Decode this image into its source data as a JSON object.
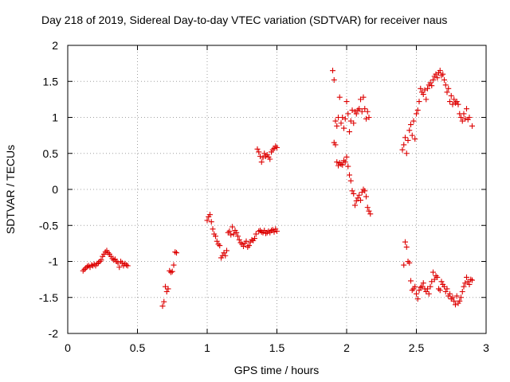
{
  "chart_data": {
    "type": "scatter",
    "title": "Day 218 of 2019, Sidereal Day-to-day VTEC variation (SDTVAR) for receiver naus",
    "xlabel": "GPS time / hours",
    "ylabel": "SDTVAR / TECUs",
    "xlim": [
      0,
      3
    ],
    "ylim": [
      -2,
      2
    ],
    "x_ticks": [
      0,
      0.5,
      1,
      1.5,
      2,
      2.5,
      3
    ],
    "x_tick_labels": [
      "0",
      "0.5",
      "1",
      "1.5",
      "2",
      "2.5",
      "3"
    ],
    "y_ticks": [
      -2,
      -1.5,
      -1,
      -0.5,
      0,
      0.5,
      1,
      1.5,
      2
    ],
    "y_tick_labels": [
      "-2",
      "-1.5",
      "-1",
      "-0.5",
      "0",
      "0.5",
      "1",
      "1.5",
      "2"
    ],
    "grid": true,
    "marker": "+",
    "marker_color": "#dd0000",
    "series": [
      {
        "name": "SDTVAR",
        "points": [
          [
            0.11,
            -1.13
          ],
          [
            0.12,
            -1.11
          ],
          [
            0.13,
            -1.09
          ],
          [
            0.14,
            -1.07
          ],
          [
            0.15,
            -1.06
          ],
          [
            0.16,
            -1.08
          ],
          [
            0.17,
            -1.05
          ],
          [
            0.18,
            -1.06
          ],
          [
            0.19,
            -1.04
          ],
          [
            0.2,
            -1.06
          ],
          [
            0.21,
            -1.03
          ],
          [
            0.22,
            -1.02
          ],
          [
            0.23,
            -1.0
          ],
          [
            0.24,
            -0.98
          ],
          [
            0.25,
            -0.93
          ],
          [
            0.26,
            -0.9
          ],
          [
            0.27,
            -0.87
          ],
          [
            0.28,
            -0.85
          ],
          [
            0.29,
            -0.88
          ],
          [
            0.3,
            -0.9
          ],
          [
            0.31,
            -0.93
          ],
          [
            0.32,
            -0.96
          ],
          [
            0.33,
            -0.98
          ],
          [
            0.34,
            -0.97
          ],
          [
            0.35,
            -1.0
          ],
          [
            0.36,
            -1.02
          ],
          [
            0.37,
            -1.08
          ],
          [
            0.38,
            -1.0
          ],
          [
            0.39,
            -1.02
          ],
          [
            0.4,
            -1.06
          ],
          [
            0.41,
            -1.03
          ],
          [
            0.42,
            -1.05
          ],
          [
            0.43,
            -1.06
          ],
          [
            0.68,
            -1.62
          ],
          [
            0.69,
            -1.56
          ],
          [
            0.7,
            -1.35
          ],
          [
            0.71,
            -1.42
          ],
          [
            0.72,
            -1.38
          ],
          [
            0.73,
            -1.13
          ],
          [
            0.74,
            -1.15
          ],
          [
            0.75,
            -1.14
          ],
          [
            0.76,
            -1.05
          ],
          [
            0.77,
            -0.87
          ],
          [
            0.78,
            -0.88
          ],
          [
            1.0,
            -0.43
          ],
          [
            1.01,
            -0.38
          ],
          [
            1.02,
            -0.35
          ],
          [
            1.03,
            -0.45
          ],
          [
            1.04,
            -0.55
          ],
          [
            1.05,
            -0.62
          ],
          [
            1.06,
            -0.65
          ],
          [
            1.07,
            -0.72
          ],
          [
            1.08,
            -0.76
          ],
          [
            1.09,
            -0.78
          ],
          [
            1.1,
            -0.95
          ],
          [
            1.11,
            -0.92
          ],
          [
            1.12,
            -0.88
          ],
          [
            1.13,
            -0.92
          ],
          [
            1.14,
            -0.85
          ],
          [
            1.15,
            -0.6
          ],
          [
            1.16,
            -0.58
          ],
          [
            1.17,
            -0.63
          ],
          [
            1.18,
            -0.52
          ],
          [
            1.19,
            -0.62
          ],
          [
            1.2,
            -0.57
          ],
          [
            1.21,
            -0.6
          ],
          [
            1.22,
            -0.65
          ],
          [
            1.23,
            -0.7
          ],
          [
            1.24,
            -0.74
          ],
          [
            1.25,
            -0.76
          ],
          [
            1.26,
            -0.79
          ],
          [
            1.27,
            -0.75
          ],
          [
            1.28,
            -0.72
          ],
          [
            1.29,
            -0.8
          ],
          [
            1.3,
            -0.78
          ],
          [
            1.31,
            -0.73
          ],
          [
            1.32,
            -0.7
          ],
          [
            1.33,
            -0.71
          ],
          [
            1.34,
            -0.68
          ],
          [
            1.35,
            -0.62
          ],
          [
            1.36,
            0.56
          ],
          [
            1.37,
            0.52
          ],
          [
            1.38,
            0.46
          ],
          [
            1.39,
            0.38
          ],
          [
            1.4,
            0.44
          ],
          [
            1.41,
            0.5
          ],
          [
            1.42,
            0.46
          ],
          [
            1.43,
            0.48
          ],
          [
            1.44,
            0.45
          ],
          [
            1.45,
            0.42
          ],
          [
            1.46,
            0.52
          ],
          [
            1.47,
            0.55
          ],
          [
            1.48,
            0.57
          ],
          [
            1.49,
            0.6
          ],
          [
            1.5,
            0.58
          ],
          [
            1.37,
            -0.58
          ],
          [
            1.38,
            -0.57
          ],
          [
            1.39,
            -0.59
          ],
          [
            1.4,
            -0.6
          ],
          [
            1.41,
            -0.57
          ],
          [
            1.42,
            -0.61
          ],
          [
            1.43,
            -0.6
          ],
          [
            1.44,
            -0.58
          ],
          [
            1.45,
            -0.6
          ],
          [
            1.46,
            -0.57
          ],
          [
            1.47,
            -0.56
          ],
          [
            1.48,
            -0.59
          ],
          [
            1.49,
            -0.55
          ],
          [
            1.5,
            -0.58
          ],
          [
            1.9,
            1.65
          ],
          [
            1.91,
            1.52
          ],
          [
            1.92,
            0.95
          ],
          [
            1.93,
            0.88
          ],
          [
            1.94,
            1.0
          ],
          [
            1.95,
            1.28
          ],
          [
            1.96,
            0.92
          ],
          [
            1.97,
            1.0
          ],
          [
            1.98,
            0.85
          ],
          [
            1.99,
            0.98
          ],
          [
            2.0,
            1.22
          ],
          [
            2.01,
            1.05
          ],
          [
            2.02,
            0.8
          ],
          [
            2.03,
            0.95
          ],
          [
            2.04,
            1.1
          ],
          [
            2.05,
            0.92
          ],
          [
            2.06,
            1.08
          ],
          [
            2.07,
            1.05
          ],
          [
            2.08,
            1.1
          ],
          [
            2.09,
            1.12
          ],
          [
            2.1,
            1.25
          ],
          [
            2.11,
            1.08
          ],
          [
            2.12,
            1.28
          ],
          [
            2.13,
            1.12
          ],
          [
            2.14,
            0.98
          ],
          [
            2.15,
            1.08
          ],
          [
            2.16,
            1.0
          ],
          [
            1.91,
            0.65
          ],
          [
            1.92,
            0.62
          ],
          [
            1.93,
            0.38
          ],
          [
            1.94,
            0.33
          ],
          [
            1.95,
            0.37
          ],
          [
            1.96,
            0.35
          ],
          [
            1.97,
            0.34
          ],
          [
            1.98,
            0.4
          ],
          [
            1.99,
            0.38
          ],
          [
            2.0,
            0.45
          ],
          [
            2.01,
            0.32
          ],
          [
            2.02,
            0.2
          ],
          [
            2.03,
            0.12
          ],
          [
            2.04,
            -0.02
          ],
          [
            2.05,
            -0.06
          ],
          [
            2.06,
            -0.22
          ],
          [
            2.07,
            -0.16
          ],
          [
            2.08,
            -0.12
          ],
          [
            2.09,
            -0.08
          ],
          [
            2.1,
            -0.15
          ],
          [
            2.11,
            -0.04
          ],
          [
            2.12,
            0.0
          ],
          [
            2.13,
            -0.02
          ],
          [
            2.14,
            -0.1
          ],
          [
            2.15,
            -0.25
          ],
          [
            2.16,
            -0.3
          ],
          [
            2.17,
            -0.34
          ],
          [
            2.4,
            0.55
          ],
          [
            2.41,
            0.62
          ],
          [
            2.42,
            0.72
          ],
          [
            2.43,
            0.5
          ],
          [
            2.44,
            0.68
          ],
          [
            2.45,
            0.82
          ],
          [
            2.46,
            0.9
          ],
          [
            2.47,
            0.75
          ],
          [
            2.48,
            0.95
          ],
          [
            2.49,
            0.7
          ],
          [
            2.5,
            1.05
          ],
          [
            2.51,
            1.1
          ],
          [
            2.52,
            1.22
          ],
          [
            2.53,
            1.4
          ],
          [
            2.54,
            1.35
          ],
          [
            2.55,
            1.32
          ],
          [
            2.56,
            1.38
          ],
          [
            2.57,
            1.25
          ],
          [
            2.58,
            1.4
          ],
          [
            2.59,
            1.45
          ],
          [
            2.6,
            1.48
          ],
          [
            2.61,
            1.44
          ],
          [
            2.62,
            1.52
          ],
          [
            2.63,
            1.57
          ],
          [
            2.64,
            1.6
          ],
          [
            2.65,
            1.55
          ],
          [
            2.66,
            1.62
          ],
          [
            2.67,
            1.65
          ],
          [
            2.68,
            1.58
          ],
          [
            2.69,
            1.6
          ],
          [
            2.7,
            1.52
          ],
          [
            2.71,
            1.45
          ],
          [
            2.72,
            1.35
          ],
          [
            2.73,
            1.4
          ],
          [
            2.74,
            1.22
          ],
          [
            2.75,
            1.3
          ],
          [
            2.76,
            1.18
          ],
          [
            2.77,
            1.25
          ],
          [
            2.78,
            1.2
          ],
          [
            2.79,
            1.22
          ],
          [
            2.8,
            1.18
          ],
          [
            2.81,
            1.05
          ],
          [
            2.82,
            1.0
          ],
          [
            2.83,
            0.95
          ],
          [
            2.84,
            1.05
          ],
          [
            2.85,
            0.98
          ],
          [
            2.86,
            1.12
          ],
          [
            2.87,
            0.97
          ],
          [
            2.88,
            1.0
          ],
          [
            2.9,
            0.88
          ],
          [
            2.41,
            -1.05
          ],
          [
            2.42,
            -0.73
          ],
          [
            2.43,
            -0.8
          ],
          [
            2.44,
            -1.0
          ],
          [
            2.45,
            -1.02
          ],
          [
            2.46,
            -1.27
          ],
          [
            2.47,
            -1.4
          ],
          [
            2.48,
            -1.38
          ],
          [
            2.49,
            -1.35
          ],
          [
            2.5,
            -1.45
          ],
          [
            2.51,
            -1.52
          ],
          [
            2.52,
            -1.4
          ],
          [
            2.53,
            -1.36
          ],
          [
            2.54,
            -1.35
          ],
          [
            2.55,
            -1.3
          ],
          [
            2.56,
            -1.38
          ],
          [
            2.57,
            -1.42
          ],
          [
            2.58,
            -1.38
          ],
          [
            2.59,
            -1.45
          ],
          [
            2.6,
            -1.35
          ],
          [
            2.61,
            -1.28
          ],
          [
            2.62,
            -1.15
          ],
          [
            2.63,
            -1.25
          ],
          [
            2.64,
            -1.2
          ],
          [
            2.65,
            -1.22
          ],
          [
            2.66,
            -1.38
          ],
          [
            2.67,
            -1.4
          ],
          [
            2.68,
            -1.28
          ],
          [
            2.69,
            -1.32
          ],
          [
            2.7,
            -1.35
          ],
          [
            2.71,
            -1.42
          ],
          [
            2.72,
            -1.38
          ],
          [
            2.73,
            -1.48
          ],
          [
            2.74,
            -1.45
          ],
          [
            2.75,
            -1.52
          ],
          [
            2.76,
            -1.5
          ],
          [
            2.77,
            -1.55
          ],
          [
            2.78,
            -1.6
          ],
          [
            2.79,
            -1.48
          ],
          [
            2.8,
            -1.58
          ],
          [
            2.81,
            -1.55
          ],
          [
            2.82,
            -1.5
          ],
          [
            2.83,
            -1.42
          ],
          [
            2.84,
            -1.35
          ],
          [
            2.85,
            -1.3
          ],
          [
            2.86,
            -1.22
          ],
          [
            2.87,
            -1.28
          ],
          [
            2.88,
            -1.32
          ],
          [
            2.89,
            -1.25
          ],
          [
            2.9,
            -1.26
          ]
        ]
      }
    ]
  }
}
